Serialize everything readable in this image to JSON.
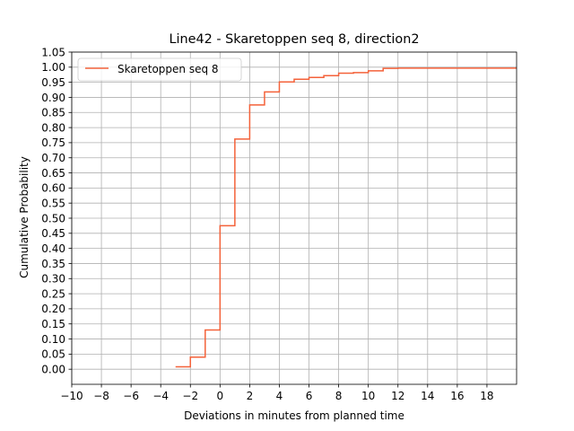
{
  "chart_data": {
    "type": "line",
    "drawstyle": "steps-post",
    "title": "Line42 - Skaretoppen seq 8, direction2",
    "xlabel": "Deviations in minutes from planned time",
    "ylabel": "Cumulative Probability",
    "xlim": [
      -10,
      20
    ],
    "ylim": [
      -0.05,
      1.05
    ],
    "x_ticks": [
      -10,
      -8,
      -6,
      -4,
      -2,
      0,
      2,
      4,
      6,
      8,
      10,
      12,
      14,
      16,
      18
    ],
    "x_tick_labels": [
      "−10",
      "−8",
      "−6",
      "−4",
      "−2",
      "0",
      "2",
      "4",
      "6",
      "8",
      "10",
      "12",
      "14",
      "16",
      "18"
    ],
    "y_ticks": [
      0,
      0.05,
      0.1,
      0.15,
      0.2,
      0.25,
      0.3,
      0.35,
      0.4,
      0.45,
      0.5,
      0.55,
      0.6,
      0.65,
      0.7,
      0.75,
      0.8,
      0.85,
      0.9,
      0.95,
      1.0,
      1.05
    ],
    "y_tick_labels": [
      "0.00",
      "0.05",
      "0.10",
      "0.15",
      "0.20",
      "0.25",
      "0.30",
      "0.35",
      "0.40",
      "0.45",
      "0.50",
      "0.55",
      "0.60",
      "0.65",
      "0.70",
      "0.75",
      "0.80",
      "0.85",
      "0.90",
      "0.95",
      "1.00",
      "1.05"
    ],
    "grid": true,
    "legend_position": "upper-left",
    "series": [
      {
        "name": "Skaretoppen seq 8",
        "color": "#f4623a",
        "x": [
          -3,
          -2,
          -1,
          0,
          1,
          2,
          3,
          4,
          5,
          6,
          7,
          8,
          9,
          10,
          11,
          12,
          20
        ],
        "y": [
          0.008,
          0.04,
          0.13,
          0.475,
          0.762,
          0.875,
          0.918,
          0.951,
          0.96,
          0.966,
          0.972,
          0.98,
          0.982,
          0.988,
          0.996,
          0.997,
          0.997
        ]
      }
    ]
  }
}
